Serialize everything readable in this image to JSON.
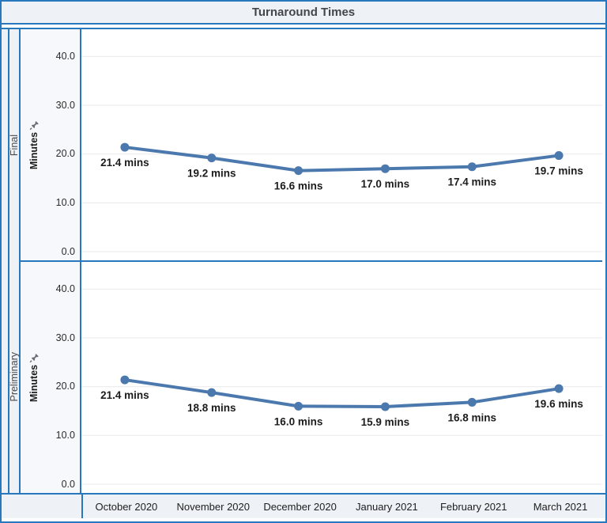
{
  "title": "Turnaround Times",
  "colors": {
    "border_blue": "#2878bd",
    "panel_bg": "#eef1f6",
    "line": "#4c79ad",
    "grid": "#e9e9e9",
    "data_label": "#1c1c1c",
    "tick_text": "#2b2b2b",
    "row_label_text": "#49494f",
    "title_text": "#45454d",
    "pin_gray": "#6d6d78"
  },
  "rows": [
    {
      "label": "Final"
    },
    {
      "label": "Preliminary"
    }
  ],
  "y_axis": {
    "label": "Minutes",
    "pin_icon": "pushpin",
    "tick_labels": {
      "t0": "0.0",
      "t10": "10.0",
      "t20": "20.0",
      "t30": "30.0",
      "t40": "40.0"
    }
  },
  "x_axis": {
    "labels": [
      "October 2020",
      "November 2020",
      "December 2020",
      "January 2021",
      "February 2021",
      "March 2021"
    ]
  },
  "chart_data": {
    "type": "line",
    "title": "Turnaround Times",
    "categories": [
      "October 2020",
      "November 2020",
      "December 2020",
      "January 2021",
      "February 2021",
      "March 2021"
    ],
    "series": [
      {
        "name": "Final",
        "values": [
          21.4,
          19.2,
          16.6,
          17.0,
          17.4,
          19.7
        ]
      },
      {
        "name": "Preliminary",
        "values": [
          21.4,
          18.8,
          16.0,
          15.9,
          16.8,
          19.6
        ]
      }
    ],
    "value_label_suffix": " mins",
    "ylabel": "Minutes",
    "xlabel": "",
    "ylim": [
      0,
      45.6
    ],
    "yticks": [
      0,
      10,
      20,
      30,
      40
    ],
    "grid": true,
    "legend": "none",
    "marker": "circle",
    "line_color": "#4c79ad"
  }
}
